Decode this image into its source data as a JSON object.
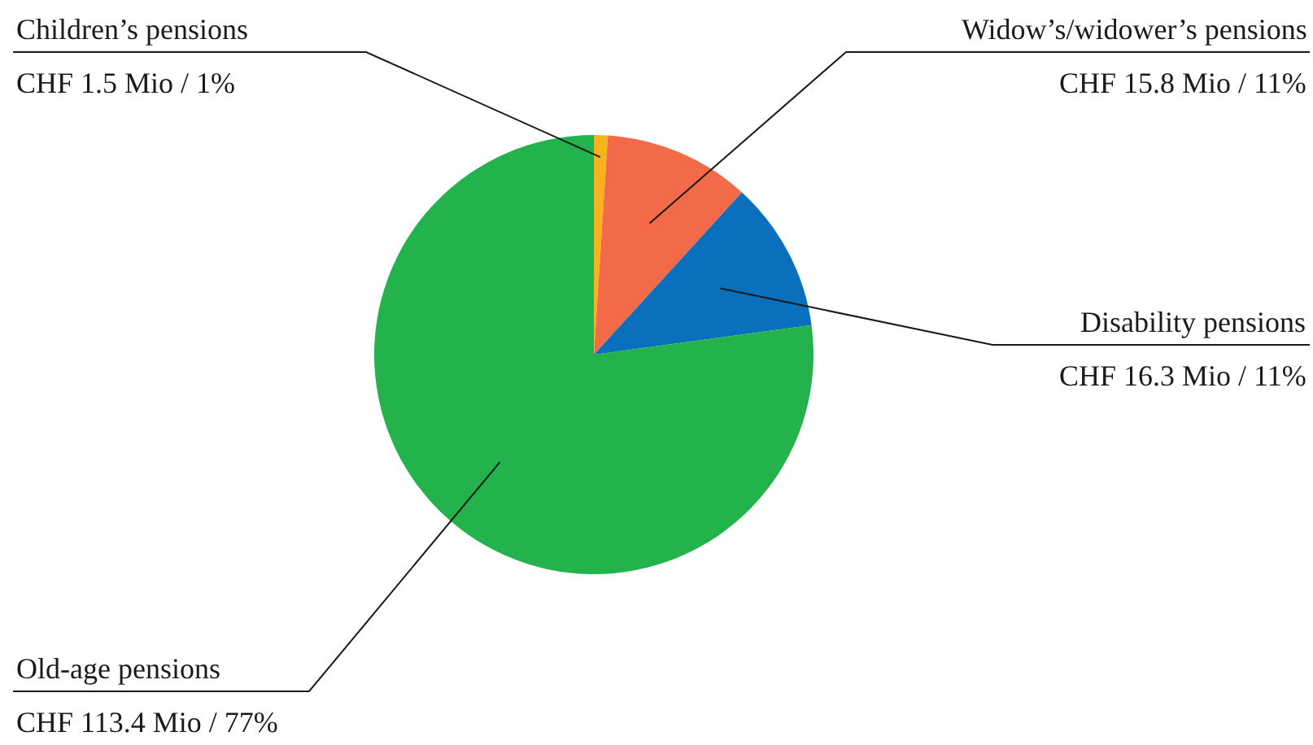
{
  "chart_data": {
    "type": "pie",
    "categories": [
      "Children’s pensions",
      "Widow’s/widower’s pensions",
      "Disability pensions",
      "Old-age pensions"
    ],
    "values": [
      1.5,
      15.8,
      16.3,
      113.4
    ],
    "colors": [
      "#f7b21e",
      "#f26a48",
      "#0a70bd",
      "#24b24c"
    ],
    "value_labels": [
      "CHF 1.5 Mio / 1%",
      "CHF 15.8 Mio / 11%",
      "CHF 16.3 Mio / 11%",
      "CHF 113.4 Mio / 77%"
    ]
  }
}
